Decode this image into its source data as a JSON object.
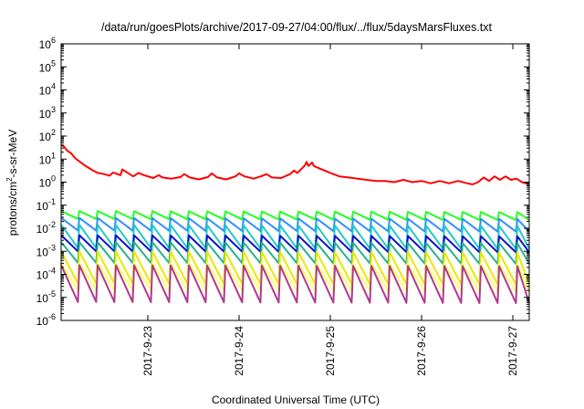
{
  "chart_data": {
    "type": "line",
    "title": "/data/run/goesPlots/archive/2017-09-27/04:00/flux/../flux/5daysMarsFluxes.txt",
    "xlabel": "Coordinated Universal Time (UTC)",
    "ylabel_parts": {
      "pre": "protons/cm",
      "sup": "2",
      "post": "-s-sr-MeV"
    },
    "x_unit": "days since 2017-09-22 00:00 UTC",
    "xlim": [
      0.05,
      5.18
    ],
    "ylim_exp": [
      -6,
      6
    ],
    "y_scale": "log",
    "y_tick_base": "10",
    "y_tick_exponents": [
      "-6",
      "-5",
      "-4",
      "-3",
      "-2",
      "-1",
      "0",
      "1",
      "2",
      "3",
      "4",
      "5",
      "6"
    ],
    "x_ticks": [
      {
        "value": 1,
        "label": "2017-9-23"
      },
      {
        "value": 2,
        "label": "2017-9-24"
      },
      {
        "value": 3,
        "label": "2017-9-25"
      },
      {
        "value": 4,
        "label": "2017-9-26"
      },
      {
        "value": 5,
        "label": "2017-9-27"
      }
    ],
    "grid": false,
    "legend": "none",
    "series": [
      {
        "color": "#ff0000",
        "x": [
          0.05,
          0.08,
          0.12,
          0.16,
          0.2,
          0.25,
          0.3,
          0.38,
          0.45,
          0.52,
          0.58,
          0.62,
          0.7,
          0.72,
          0.8,
          0.84,
          0.9,
          0.96,
          1.06,
          1.12,
          1.16,
          1.26,
          1.36,
          1.4,
          1.46,
          1.56,
          1.66,
          1.7,
          1.76,
          1.86,
          1.96,
          2.0,
          2.06,
          2.16,
          2.26,
          2.3,
          2.36,
          2.46,
          2.56,
          2.6,
          2.64,
          2.72,
          2.74,
          2.76,
          2.8,
          2.82,
          2.88,
          2.94,
          3.0,
          3.1,
          3.2,
          3.3,
          3.4,
          3.5,
          3.6,
          3.7,
          3.8,
          3.9,
          4.0,
          4.1,
          4.2,
          4.3,
          4.4,
          4.5,
          4.56,
          4.62,
          4.68,
          4.74,
          4.8,
          4.86,
          4.92,
          4.98,
          5.04,
          5.1,
          5.18
        ],
        "y_exp": [
          1.62,
          1.55,
          1.35,
          1.25,
          1.05,
          0.9,
          0.75,
          0.55,
          0.4,
          0.35,
          0.28,
          0.42,
          0.3,
          0.55,
          0.35,
          0.25,
          0.4,
          0.3,
          0.18,
          0.3,
          0.2,
          0.15,
          0.22,
          0.35,
          0.2,
          0.12,
          0.22,
          0.38,
          0.2,
          0.12,
          0.25,
          0.38,
          0.25,
          0.15,
          0.28,
          0.35,
          0.2,
          0.18,
          0.35,
          0.5,
          0.4,
          0.72,
          0.88,
          0.7,
          0.85,
          0.7,
          0.6,
          0.5,
          0.4,
          0.25,
          0.2,
          0.15,
          0.1,
          0.05,
          0.05,
          0.0,
          0.1,
          0.0,
          0.05,
          -0.05,
          0.05,
          -0.05,
          0.05,
          -0.05,
          -0.1,
          0.0,
          0.2,
          0.05,
          0.25,
          0.1,
          0.25,
          0.1,
          0.15,
          0.0,
          -0.1
        ]
      },
      {
        "color": "#22ff22",
        "x_start": 0.05,
        "x_end": 5.18,
        "period": 0.2,
        "y_min_exp": -1.6,
        "y_max_exp": -1.25,
        "drift_exp": -0.05
      },
      {
        "color": "#2f8fff",
        "x_start": 0.05,
        "x_end": 5.18,
        "period": 0.2,
        "y_min_exp": -2.1,
        "y_max_exp": -1.55,
        "drift_exp": -0.05
      },
      {
        "color": "#22c9c9",
        "x_start": 0.05,
        "x_end": 5.18,
        "period": 0.2,
        "y_min_exp": -2.85,
        "y_max_exp": -1.85,
        "drift_exp": -0.05
      },
      {
        "color": "#0b12cc",
        "x_start": 0.05,
        "x_end": 5.18,
        "period": 0.2,
        "y_min_exp": -3.0,
        "y_max_exp": -2.3,
        "drift_exp": -0.05
      },
      {
        "color": "#28b28c",
        "x_start": 0.05,
        "x_end": 5.18,
        "period": 0.2,
        "y_min_exp": -3.5,
        "y_max_exp": -2.6,
        "drift_exp": -0.05
      },
      {
        "color": "#e8e800",
        "x_start": 0.05,
        "x_end": 5.18,
        "period": 0.2,
        "y_min_exp": -4.4,
        "y_max_exp": -3.0,
        "drift_exp": -0.05
      },
      {
        "color": "#ffff66",
        "x_start": 0.05,
        "x_end": 5.18,
        "period": 0.2,
        "y_min_exp": -4.7,
        "y_max_exp": -3.5,
        "drift_exp": -0.05
      },
      {
        "color": "#b03a8a",
        "x_start": 0.05,
        "x_end": 5.18,
        "period": 0.2,
        "y_min_exp": -5.2,
        "y_max_exp": -3.6,
        "drift_exp": -0.05
      }
    ]
  }
}
